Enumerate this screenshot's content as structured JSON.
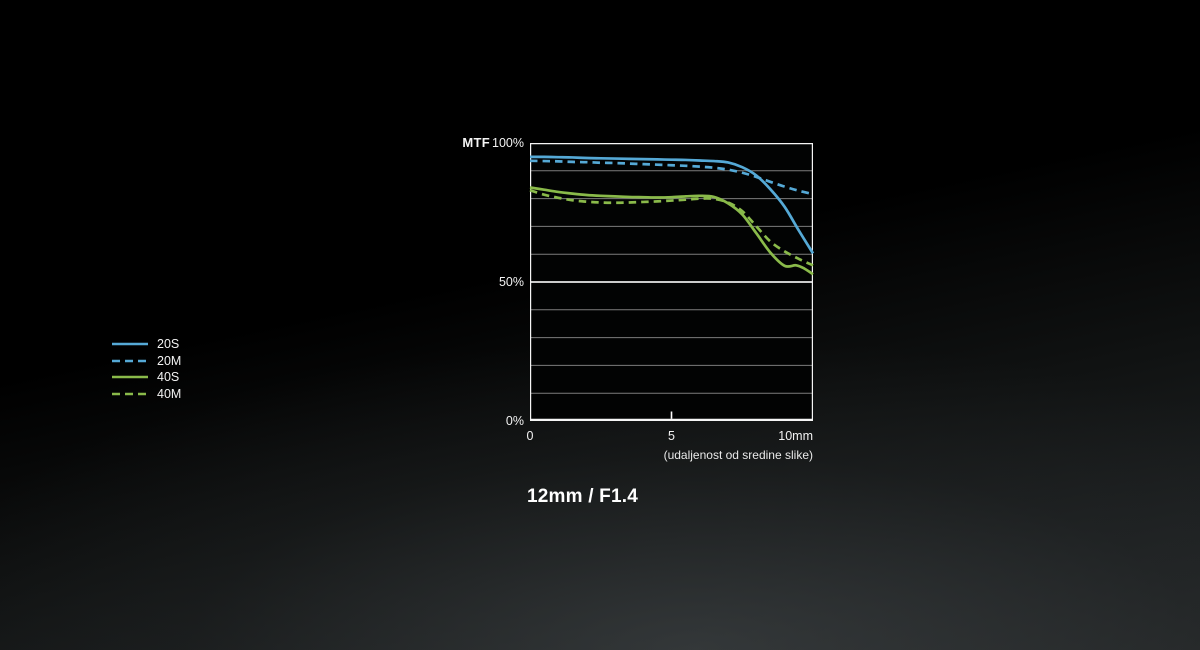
{
  "chart_data": {
    "type": "line",
    "title": "12mm / F1.4",
    "ylabel": "MTF",
    "xlabel": "(udaljenost od sredine slike)",
    "xlim": [
      0,
      10
    ],
    "ylim": [
      0,
      100
    ],
    "grid": true,
    "legend_position": "left",
    "x_ticks": [
      {
        "value": 0,
        "label": "0"
      },
      {
        "value": 5,
        "label": "5"
      },
      {
        "value": 10,
        "label": "10mm"
      }
    ],
    "x_tick_marks": [
      5
    ],
    "y_ticks": [
      {
        "value": 100,
        "label": "100%"
      },
      {
        "value": 50,
        "label": "50%"
      },
      {
        "value": 0,
        "label": "0%"
      }
    ],
    "y_gridlines_pct": [
      10,
      20,
      30,
      40,
      50,
      60,
      70,
      80,
      90
    ],
    "emphasized_gridline_pct": 50,
    "colors": {
      "grid": "#7c7c7c",
      "emphasis": "#e8e8e8",
      "axis": "#f5f5f5",
      "plot_background": "#020303",
      "blue": "#55a9d6",
      "green": "#8aba4a"
    },
    "series": [
      {
        "name": "20S",
        "style": "solid",
        "color": "#55a9d6",
        "x": [
          0,
          0.5,
          1,
          1.5,
          2,
          2.5,
          3,
          3.5,
          4,
          4.5,
          5,
          5.5,
          6,
          6.5,
          7,
          7.5,
          8,
          8.5,
          9,
          9.5,
          10
        ],
        "y": [
          95,
          95,
          94.9,
          94.8,
          94.6,
          94.5,
          94.4,
          94.3,
          94.2,
          94.1,
          94,
          93.9,
          93.7,
          93.5,
          93,
          91.3,
          88.3,
          83.3,
          77,
          68.5,
          60.3
        ]
      },
      {
        "name": "20M",
        "style": "dashed",
        "color": "#55a9d6",
        "x": [
          0,
          0.5,
          1,
          1.5,
          2,
          2.5,
          3,
          3.5,
          4,
          4.5,
          5,
          5.5,
          6,
          6.5,
          7,
          7.5,
          8,
          8.5,
          9,
          9.5,
          10
        ],
        "y": [
          93.6,
          93.5,
          93.4,
          93.2,
          93.1,
          92.9,
          92.8,
          92.6,
          92.4,
          92.2,
          92,
          91.8,
          91.5,
          91.1,
          90.4,
          89.3,
          87.8,
          86,
          84.3,
          82.8,
          81.6
        ]
      },
      {
        "name": "40S",
        "style": "solid",
        "color": "#8aba4a",
        "x": [
          0,
          0.5,
          1,
          1.5,
          2,
          2.5,
          3,
          3.5,
          4,
          4.5,
          5,
          5.5,
          6,
          6.5,
          7,
          7.5,
          8,
          8.5,
          9,
          9.4,
          9.7,
          10
        ],
        "y": [
          84,
          83.2,
          82.4,
          81.8,
          81.3,
          81,
          80.8,
          80.6,
          80.5,
          80.4,
          80.5,
          80.8,
          81,
          80.6,
          78.3,
          74.3,
          67.5,
          60.5,
          55.8,
          56,
          54.8,
          52.8
        ]
      },
      {
        "name": "40M",
        "style": "dashed",
        "color": "#8aba4a",
        "x": [
          0,
          0.5,
          1,
          1.5,
          2,
          2.5,
          3,
          3.5,
          4,
          4.5,
          5,
          5.5,
          6,
          6.5,
          7,
          7.5,
          8,
          8.5,
          9,
          9.5,
          10
        ],
        "y": [
          83,
          81.4,
          80.3,
          79.4,
          78.9,
          78.6,
          78.5,
          78.6,
          78.8,
          79,
          79.3,
          79.6,
          80,
          79.9,
          78.6,
          75.5,
          70,
          64.5,
          61,
          58.3,
          56
        ]
      }
    ]
  }
}
